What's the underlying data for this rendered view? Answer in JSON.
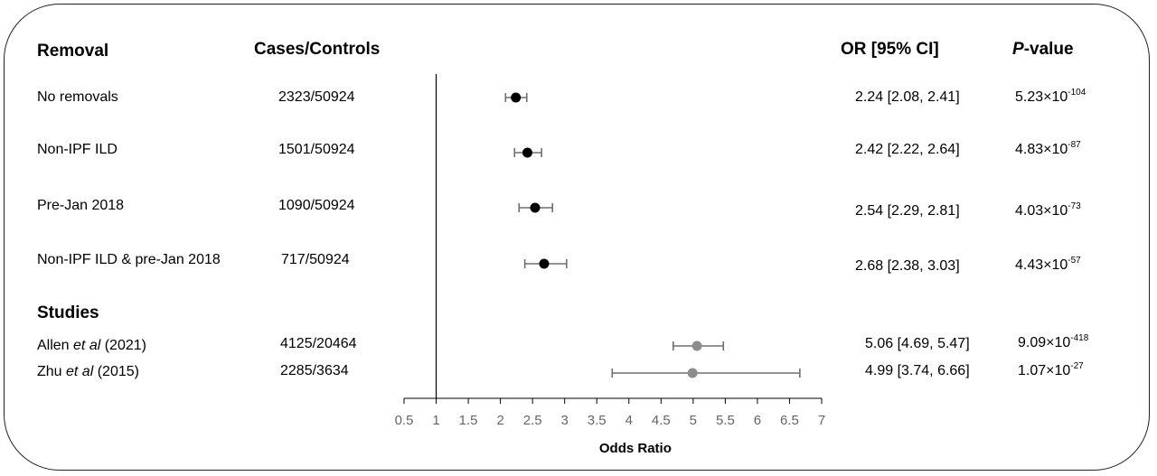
{
  "headers": {
    "removal": "Removal",
    "cases_controls": "Cases/Controls",
    "or_ci": "OR [95% CI]",
    "p_value_italic": "P",
    "p_value_rest": "-value"
  },
  "sections": {
    "studies": "Studies"
  },
  "rows": [
    {
      "label": "No removals",
      "label_pre": "",
      "label_italic": "",
      "label_post": "",
      "cases": "2323/50924",
      "or_text": "2.24 [2.08, 2.41]",
      "p_mant": "5.23×10",
      "p_exp": "-104"
    },
    {
      "label": "Non-IPF ILD",
      "label_pre": "",
      "label_italic": "",
      "label_post": "",
      "cases": "1501/50924",
      "or_text": "2.42 [2.22, 2.64]",
      "p_mant": "4.83×10",
      "p_exp": "-87"
    },
    {
      "label": "Pre-Jan 2018",
      "label_pre": "",
      "label_italic": "",
      "label_post": "",
      "cases": "1090/50924",
      "or_text": "2.54 [2.29, 2.81]",
      "p_mant": "4.03×10",
      "p_exp": "-73"
    },
    {
      "label": "Non-IPF ILD & pre-Jan 2018",
      "label_pre": "",
      "label_italic": "",
      "label_post": "",
      "cases": "717/50924",
      "or_text": "2.68 [2.38, 3.03]",
      "p_mant": "4.43×10",
      "p_exp": "-57"
    },
    {
      "label": "",
      "label_pre": "Allen ",
      "label_italic": "et al",
      "label_post": " (2021)",
      "cases": "4125/20464",
      "or_text": "5.06 [4.69, 5.47]",
      "p_mant": "9.09×10",
      "p_exp": "-418"
    },
    {
      "label": "",
      "label_pre": "Zhu ",
      "label_italic": "et al",
      "label_post": " (2015)",
      "cases": "2285/3634",
      "or_text": "4.99 [3.74, 6.66]",
      "p_mant": "1.07×10",
      "p_exp": "-27"
    }
  ],
  "chart_data": {
    "type": "scatter",
    "xlabel": "Odds Ratio",
    "xlim": [
      0.5,
      7
    ],
    "xticks": [
      "0.5",
      "1",
      "1.5",
      "2",
      "2.5",
      "3",
      "3.5",
      "4",
      "4.5",
      "5",
      "5.5",
      "6",
      "6.5",
      "7"
    ],
    "reference_line": 1,
    "series": [
      {
        "color": "#000000",
        "points": [
          {
            "label": "No removals",
            "or": 2.24,
            "lo": 2.08,
            "hi": 2.41
          },
          {
            "label": "Non-IPF ILD",
            "or": 2.42,
            "lo": 2.22,
            "hi": 2.64
          },
          {
            "label": "Pre-Jan 2018",
            "or": 2.54,
            "lo": 2.29,
            "hi": 2.81
          },
          {
            "label": "Non-IPF ILD & pre-Jan 2018",
            "or": 2.68,
            "lo": 2.38,
            "hi": 3.03
          }
        ]
      },
      {
        "color": "#8c8c8c",
        "points": [
          {
            "label": "Allen et al (2021)",
            "or": 5.06,
            "lo": 4.69,
            "hi": 5.47
          },
          {
            "label": "Zhu et al (2015)",
            "or": 4.99,
            "lo": 3.74,
            "hi": 6.66
          }
        ]
      }
    ],
    "colors": {
      "ci_whisker": "#6e6e6e",
      "axis": "#000000",
      "tick_text": "#666666"
    }
  }
}
